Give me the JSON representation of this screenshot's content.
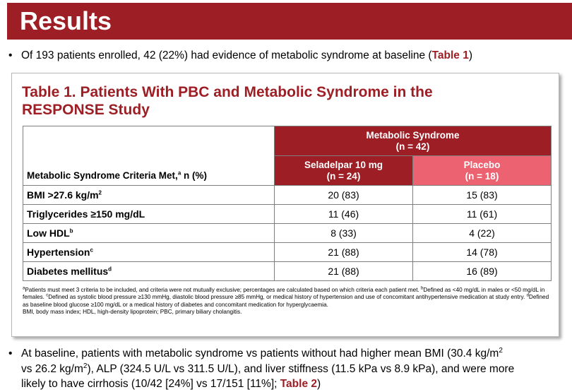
{
  "header": {
    "title": "Results"
  },
  "bullets": [
    {
      "pre": "Of 193 patients enrolled, 42 (22%) had evidence of metabolic syndrome at baseline (",
      "ref": "Table 1",
      "post": ")"
    }
  ],
  "bullet2": {
    "l1a": "At baseline, patients with metabolic syndrome vs patients without had higher mean BMI (30.4 kg/m",
    "l1sup": "2",
    "l2a": "vs 26.2 kg/m",
    "l2sup": "2",
    "l2b": "), ALP (324.5 U/L vs 311.5 U/L), and liver stiffness (11.5 kPa vs 8.9 kPa), and were more",
    "l3a": "likely to have cirrhosis (10/42 [24%] vs 17/151 [11%]; ",
    "ref": "Table 2",
    "post": ")"
  },
  "table": {
    "title": "Table 1. Patients With PBC and Metabolic Syndrome in the RESPONSE Study",
    "group_header": {
      "line1": "Metabolic Syndrome",
      "line2": "(n = 42)"
    },
    "col_label": {
      "text": "Metabolic Syndrome Criteria Met,",
      "sup": "a",
      "post": " n (%)"
    },
    "cols": [
      {
        "line1": "Seladelpar 10 mg",
        "line2": "(n = 24)"
      },
      {
        "line1": "Placebo",
        "line2": "(n = 18)"
      }
    ],
    "rows": [
      {
        "label": "BMI >27.6 kg/m",
        "sup": "2",
        "v1": "20 (83)",
        "v2": "15 (83)"
      },
      {
        "label": "Triglycerides ≥150 mg/dL",
        "sup": "",
        "v1": "11 (46)",
        "v2": "11 (61)"
      },
      {
        "label": "Low HDL",
        "sup": "b",
        "v1": "8 (33)",
        "v2": "4 (22)"
      },
      {
        "label": "Hypertension",
        "sup": "c",
        "v1": "21 (88)",
        "v2": "14 (78)"
      },
      {
        "label": "Diabetes mellitus",
        "sup": "d",
        "v1": "21 (88)",
        "v2": "16 (89)"
      }
    ],
    "footnotes": {
      "f1_sup": "a",
      "f1": "Patients must meet 3 criteria to be included, and criteria were not mutually exclusive; percentages are calculated based on which criteria each patient met. ",
      "f2_sup": "b",
      "f2": "Defined as <40 mg/dL in males or <50 mg/dL in females. ",
      "f3_sup": "c",
      "f3": "Defined as systolic blood pressure ≥130 mmHg, diastolic blood pressure ≥85 mmHg, or medical history of hypertension and use of concomitant antihypertensive medication at study entry. ",
      "f4_sup": "d",
      "f4": "Defined as baseline blood glucose ≥100 mg/dL or a medical history of diabetes and concomitant medication for hyperglycaemia.",
      "abbrev": "BMI, body mass index; HDL, high-density lipoprotein; PBC, primary biliary cholangitis."
    }
  },
  "colors": {
    "brand_red": "#9d1e24",
    "placebo_pink": "#ec6270"
  }
}
